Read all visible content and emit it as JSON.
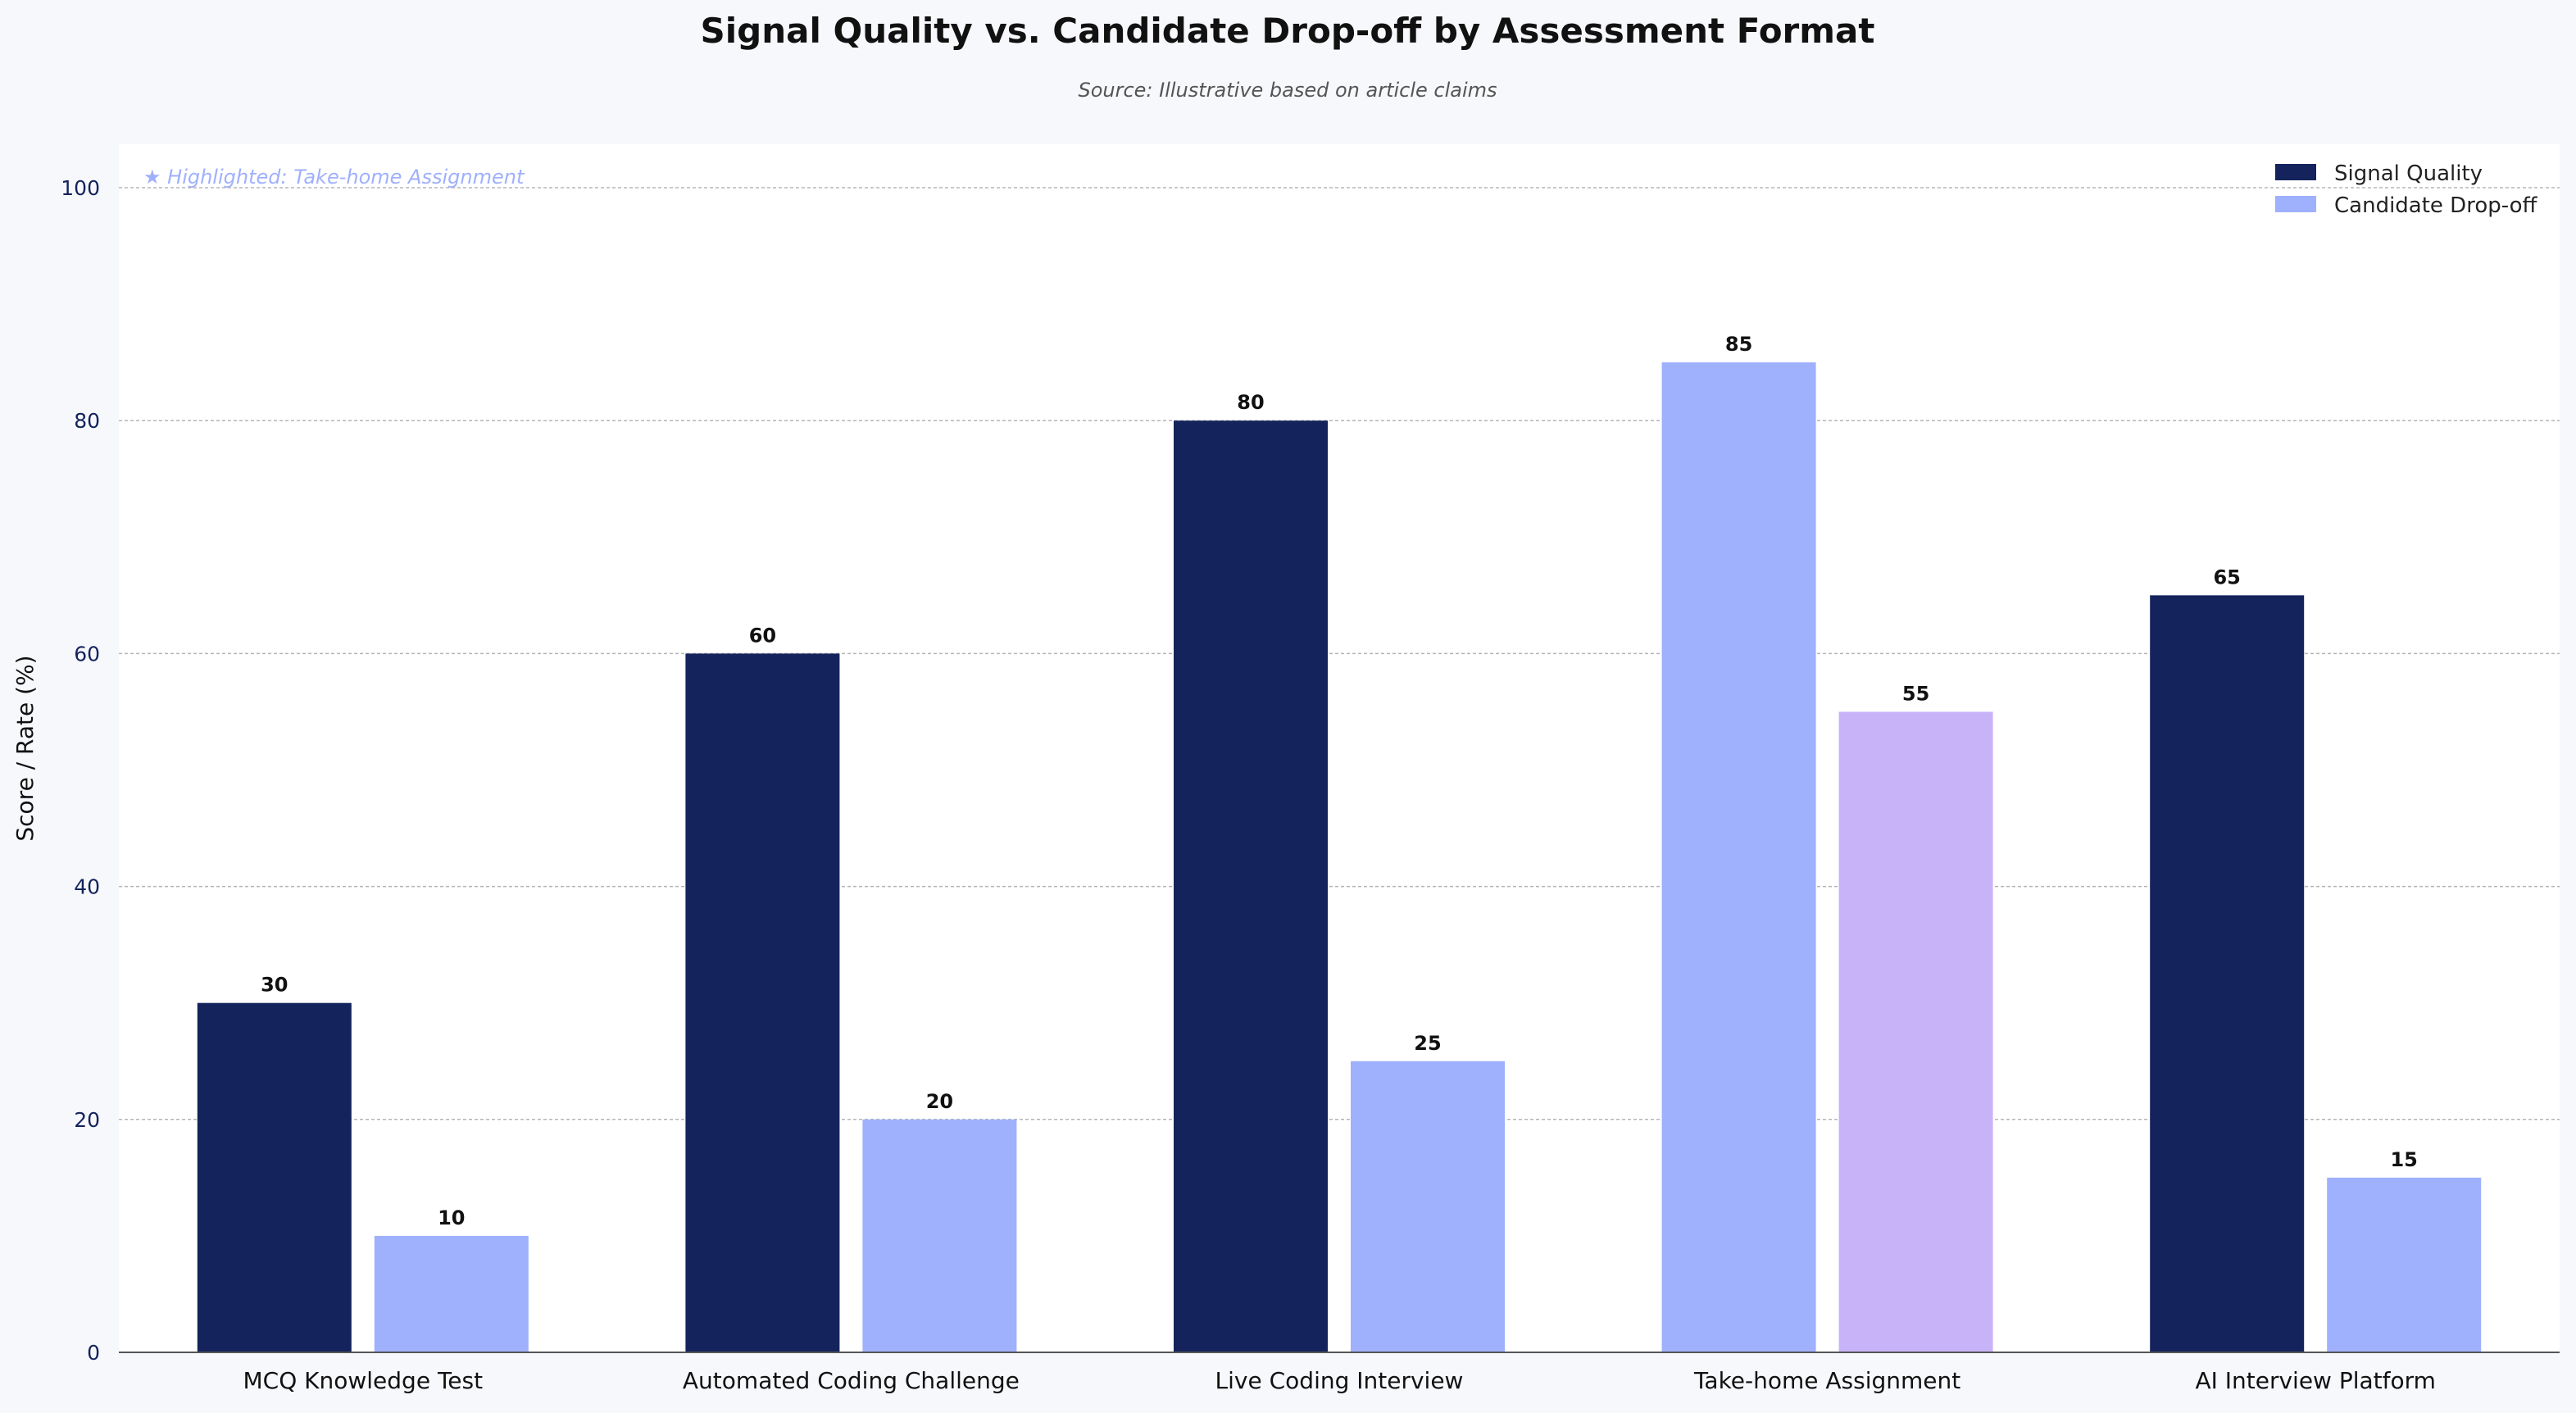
{
  "chart_data": {
    "type": "bar",
    "title": "Signal Quality vs. Candidate Drop-off by Assessment Format",
    "subtitle": "Source: Illustrative based on article claims",
    "ylabel": "Score / Rate (%)",
    "xlabel": "",
    "ylim": [
      0,
      100
    ],
    "yticks": [
      0,
      20,
      40,
      60,
      80,
      100
    ],
    "grid": true,
    "legend_position": "top-right",
    "annotation": "★ Highlighted: Take-home Assignment",
    "categories": [
      "MCQ Knowledge Test",
      "Automated Coding Challenge",
      "Live Coding Interview",
      "Take-home Assignment",
      "AI Interview Platform"
    ],
    "series": [
      {
        "name": "Signal Quality",
        "color": "#14235c",
        "values": [
          30,
          60,
          80,
          85,
          65
        ]
      },
      {
        "name": "Candidate Drop-off",
        "color": "#9fb0fc",
        "values": [
          10,
          20,
          25,
          55,
          15
        ]
      }
    ],
    "highlight": {
      "category": "Take-home Assignment",
      "series_colors": [
        "#9fb0fc",
        "#c8b3f8"
      ],
      "annotation_color": "#9fb0fc"
    }
  }
}
